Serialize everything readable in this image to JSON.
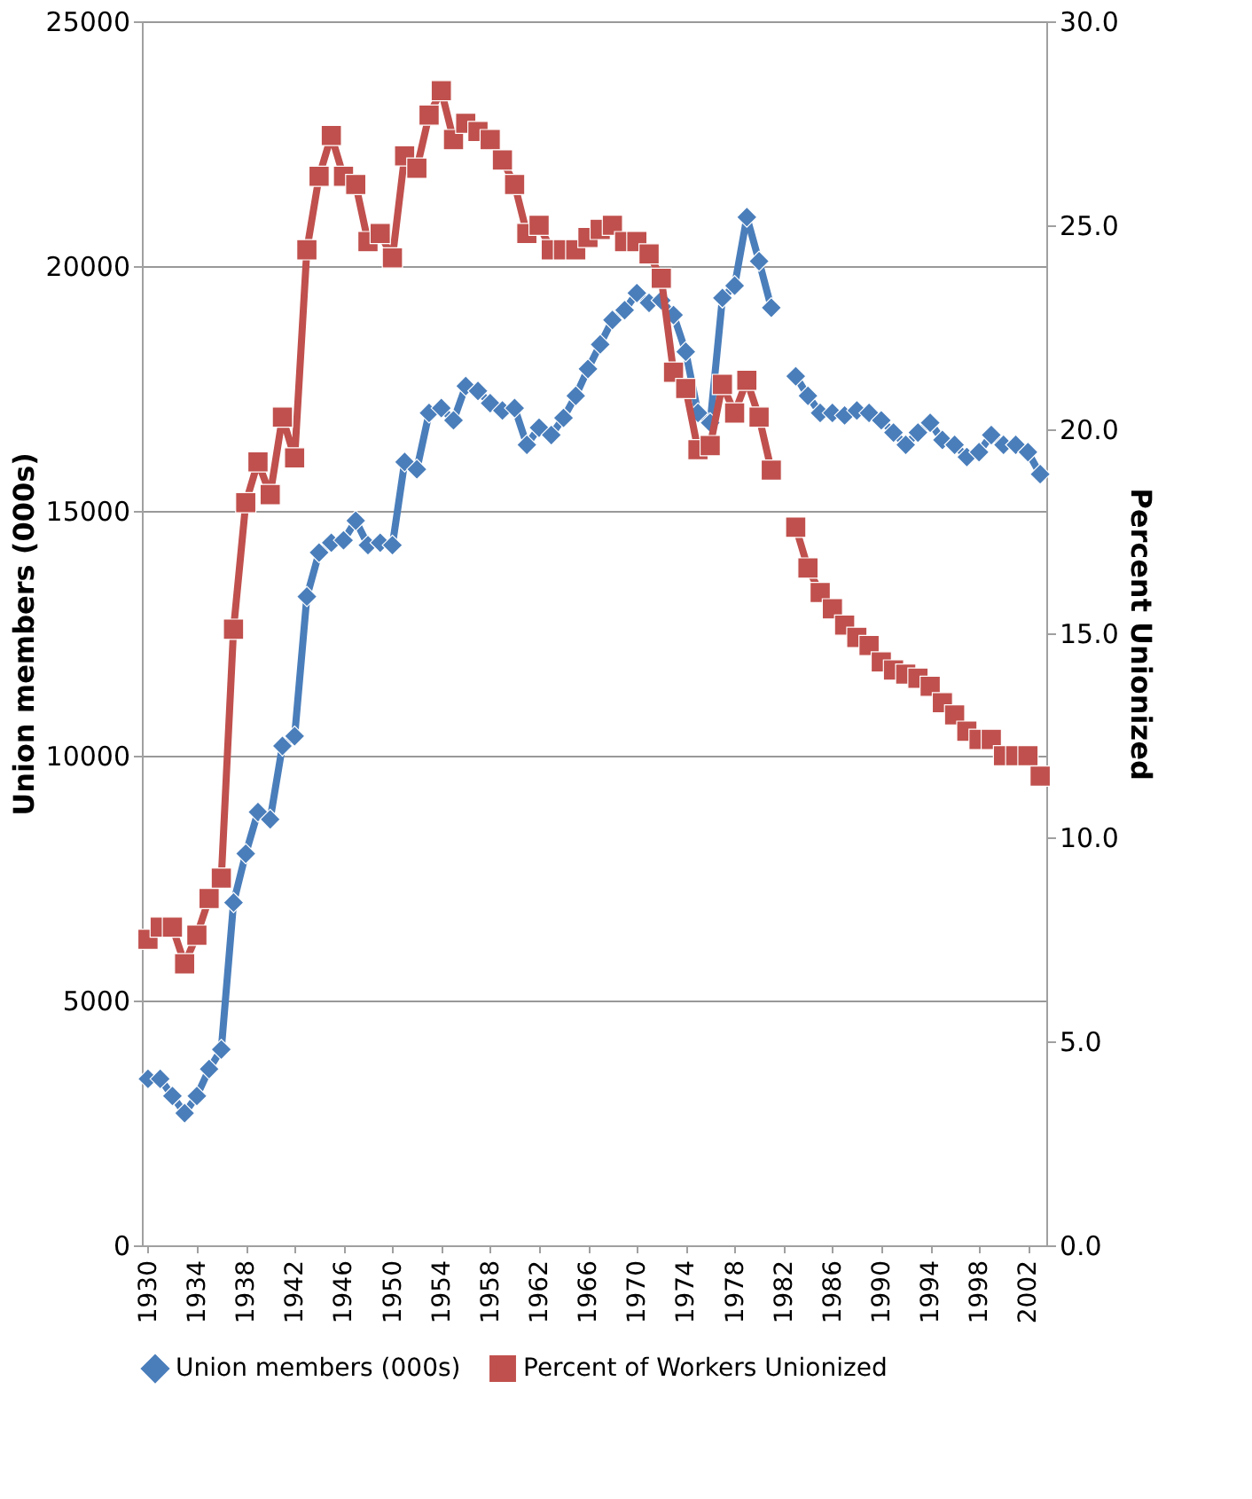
{
  "chart_data": {
    "type": "line",
    "categories": [
      "1930",
      null,
      null,
      null,
      "1934",
      null,
      null,
      null,
      "1938",
      null,
      null,
      null,
      "1942",
      null,
      null,
      null,
      "1946",
      null,
      null,
      null,
      "1950",
      null,
      null,
      null,
      "1954",
      null,
      null,
      null,
      "1958",
      null,
      null,
      null,
      "1962",
      null,
      null,
      null,
      "1966",
      null,
      null,
      null,
      "1970",
      null,
      null,
      null,
      "1974",
      null,
      null,
      null,
      "1978",
      null,
      null,
      null,
      "1982",
      null,
      null,
      null,
      "1986",
      null,
      null,
      null,
      "1990",
      null,
      null,
      null,
      "1994",
      null,
      null,
      null,
      "1998",
      null,
      null,
      null,
      "2002",
      null
    ],
    "ylabel": "Union members (000s)",
    "y2label": "Percent Unionized",
    "ylim": [
      0,
      25000
    ],
    "yticks": [
      0,
      5000,
      10000,
      15000,
      20000,
      25000
    ],
    "y2lim": [
      0,
      30
    ],
    "y2ticks": [
      {
        "value": 0,
        "label": "0.0"
      },
      {
        "value": 5,
        "label": "5.0"
      },
      {
        "value": 10,
        "label": "10.0"
      },
      {
        "value": 15,
        "label": "15.0"
      },
      {
        "value": 20,
        "label": "20.0"
      },
      {
        "value": 25,
        "label": "25.0"
      },
      {
        "value": 30,
        "label": "30.0"
      }
    ],
    "grid": "y",
    "legend": "bottom",
    "line_style": "solid",
    "series": [
      {
        "name": "Union members (000s)",
        "color": "#4a7ebb",
        "marker": "diamond",
        "values": [
          3400,
          3400,
          3050,
          2700,
          3050,
          3600,
          4000,
          7000,
          8000,
          8850,
          8700,
          10200,
          10400,
          13250,
          14150,
          14350,
          14400,
          14800,
          14300,
          14350,
          14300,
          16000,
          15850,
          17000,
          17100,
          16850,
          17550,
          17450,
          17200,
          17050,
          17100,
          16350,
          16700,
          16550,
          16900,
          17350,
          17900,
          18400,
          18900,
          19100,
          19450,
          19250,
          19300,
          19000,
          18250,
          17000,
          16800,
          19350,
          19600,
          21000,
          20100,
          19150,
          null,
          17750,
          17350,
          17000,
          17000,
          16950,
          17050,
          17000,
          16850,
          16600,
          16350,
          16600,
          16800,
          16450,
          16350,
          16100,
          16200,
          16550,
          16350,
          16350,
          16200,
          15750
        ]
      },
      {
        "name": "Percent of Workers Unionized",
        "color": "#c0504d",
        "marker": "square",
        "axis": "y2",
        "values": [
          7.5,
          7.8,
          7.8,
          6.9,
          7.6,
          8.5,
          9.0,
          15.1,
          18.2,
          19.2,
          18.4,
          20.3,
          19.3,
          24.4,
          26.2,
          27.2,
          26.2,
          26.0,
          24.6,
          24.8,
          24.2,
          26.7,
          26.4,
          27.7,
          28.3,
          27.1,
          27.5,
          27.3,
          27.1,
          26.6,
          26.0,
          24.8,
          25.0,
          24.4,
          24.4,
          24.4,
          24.7,
          24.9,
          25.0,
          24.6,
          24.6,
          24.3,
          23.7,
          21.4,
          21.0,
          19.5,
          19.6,
          21.1,
          20.4,
          21.2,
          20.3,
          19.0,
          null,
          17.6,
          16.6,
          16.0,
          15.6,
          15.2,
          14.9,
          14.7,
          14.3,
          14.1,
          14.0,
          13.9,
          13.7,
          13.3,
          13.0,
          12.6,
          12.4,
          12.4,
          12.0,
          12.0,
          12.0,
          11.5
        ]
      }
    ]
  }
}
